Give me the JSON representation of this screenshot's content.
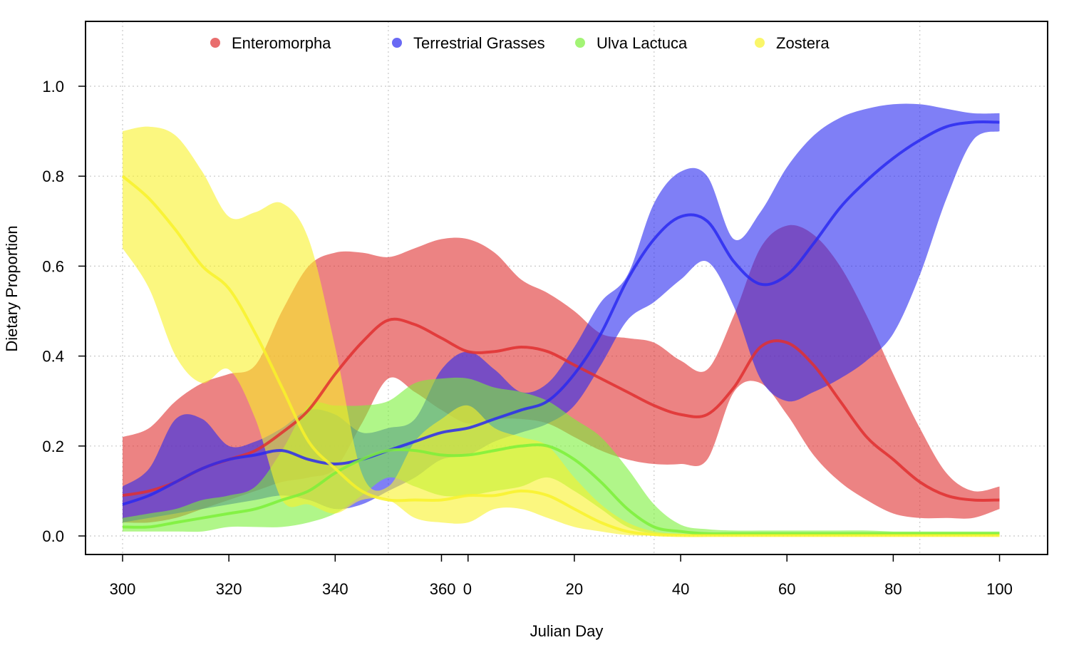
{
  "chart_data": {
    "type": "area",
    "xlabel": "Julian Day",
    "ylabel": "Dietary Proportion",
    "x_domain": [
      300,
      466
    ],
    "ylim": [
      -0.05,
      1.1
    ],
    "x_ticks": [
      {
        "pos": 300,
        "label": "300"
      },
      {
        "pos": 320,
        "label": "320"
      },
      {
        "pos": 340,
        "label": "340"
      },
      {
        "pos": 360,
        "label": "360"
      },
      {
        "pos": 365,
        "label": "0"
      },
      {
        "pos": 385,
        "label": "20"
      },
      {
        "pos": 405,
        "label": "40"
      },
      {
        "pos": 425,
        "label": "60"
      },
      {
        "pos": 445,
        "label": "80"
      },
      {
        "pos": 465,
        "label": "100"
      }
    ],
    "x_grid": [
      300,
      350,
      400,
      450
    ],
    "y_ticks": [
      {
        "pos": 0.0,
        "label": "0.0"
      },
      {
        "pos": 0.2,
        "label": "0.2"
      },
      {
        "pos": 0.4,
        "label": "0.4"
      },
      {
        "pos": 0.6,
        "label": "0.6"
      },
      {
        "pos": 0.8,
        "label": "0.8"
      },
      {
        "pos": 1.0,
        "label": "1.0"
      }
    ],
    "grid": true,
    "legend_position": "top",
    "series": [
      {
        "name": "Enteromorpha",
        "color": "#e03030",
        "x": [
          300,
          305,
          310,
          315,
          320,
          325,
          330,
          335,
          340,
          345,
          350,
          355,
          360,
          365,
          370,
          375,
          380,
          385,
          390,
          395,
          400,
          405,
          410,
          415,
          420,
          425,
          430,
          435,
          440,
          445,
          450,
          455,
          460,
          465
        ],
        "mean": [
          0.09,
          0.1,
          0.12,
          0.15,
          0.17,
          0.19,
          0.23,
          0.28,
          0.36,
          0.43,
          0.48,
          0.47,
          0.44,
          0.41,
          0.41,
          0.42,
          0.41,
          0.38,
          0.35,
          0.32,
          0.29,
          0.27,
          0.27,
          0.33,
          0.42,
          0.43,
          0.38,
          0.3,
          0.22,
          0.17,
          0.12,
          0.09,
          0.08,
          0.08
        ],
        "lower": [
          0.03,
          0.03,
          0.04,
          0.06,
          0.08,
          0.1,
          0.12,
          0.13,
          0.15,
          0.25,
          0.35,
          0.32,
          0.28,
          0.25,
          0.26,
          0.26,
          0.25,
          0.22,
          0.19,
          0.17,
          0.16,
          0.16,
          0.17,
          0.32,
          0.34,
          0.27,
          0.18,
          0.12,
          0.08,
          0.05,
          0.04,
          0.04,
          0.04,
          0.06
        ],
        "upper": [
          0.22,
          0.24,
          0.3,
          0.34,
          0.36,
          0.38,
          0.5,
          0.6,
          0.63,
          0.63,
          0.62,
          0.64,
          0.66,
          0.66,
          0.63,
          0.57,
          0.54,
          0.5,
          0.45,
          0.44,
          0.43,
          0.39,
          0.37,
          0.49,
          0.64,
          0.69,
          0.67,
          0.6,
          0.49,
          0.36,
          0.24,
          0.14,
          0.1,
          0.11
        ]
      },
      {
        "name": "Terrestrial Grasses",
        "color": "#2a2af0",
        "x": [
          300,
          305,
          310,
          315,
          320,
          325,
          330,
          335,
          340,
          345,
          350,
          355,
          360,
          365,
          370,
          375,
          380,
          385,
          390,
          395,
          400,
          405,
          410,
          415,
          420,
          425,
          430,
          435,
          440,
          445,
          450,
          455,
          460,
          465
        ],
        "mean": [
          0.07,
          0.09,
          0.12,
          0.15,
          0.17,
          0.18,
          0.19,
          0.17,
          0.16,
          0.17,
          0.19,
          0.21,
          0.23,
          0.24,
          0.26,
          0.28,
          0.3,
          0.36,
          0.45,
          0.57,
          0.66,
          0.71,
          0.7,
          0.61,
          0.56,
          0.58,
          0.65,
          0.73,
          0.79,
          0.84,
          0.88,
          0.91,
          0.92,
          0.92
        ],
        "lower": [
          0.03,
          0.04,
          0.05,
          0.06,
          0.07,
          0.08,
          0.09,
          0.08,
          0.06,
          0.07,
          0.1,
          0.13,
          0.17,
          0.18,
          0.21,
          0.23,
          0.25,
          0.29,
          0.38,
          0.48,
          0.52,
          0.57,
          0.61,
          0.51,
          0.35,
          0.3,
          0.32,
          0.35,
          0.39,
          0.45,
          0.58,
          0.75,
          0.88,
          0.9
        ],
        "upper": [
          0.11,
          0.15,
          0.26,
          0.26,
          0.2,
          0.21,
          0.24,
          0.28,
          0.27,
          0.23,
          0.24,
          0.26,
          0.37,
          0.41,
          0.37,
          0.32,
          0.34,
          0.42,
          0.52,
          0.58,
          0.74,
          0.81,
          0.8,
          0.66,
          0.72,
          0.82,
          0.89,
          0.93,
          0.95,
          0.96,
          0.96,
          0.95,
          0.94,
          0.94
        ]
      },
      {
        "name": "Ulva Lactuca",
        "color": "#7cf03a",
        "x": [
          300,
          305,
          310,
          315,
          320,
          325,
          330,
          335,
          340,
          345,
          350,
          355,
          360,
          365,
          370,
          375,
          380,
          385,
          390,
          395,
          400,
          405,
          410,
          415,
          420,
          425,
          430,
          435,
          440,
          445,
          450,
          455,
          460,
          465
        ],
        "mean": [
          0.02,
          0.02,
          0.03,
          0.04,
          0.05,
          0.06,
          0.08,
          0.1,
          0.14,
          0.17,
          0.19,
          0.19,
          0.18,
          0.18,
          0.19,
          0.2,
          0.2,
          0.17,
          0.12,
          0.06,
          0.02,
          0.01,
          0.005,
          0.005,
          0.005,
          0.005,
          0.005,
          0.005,
          0.005,
          0.005,
          0.005,
          0.005,
          0.005,
          0.005
        ],
        "lower": [
          0.01,
          0.01,
          0.01,
          0.01,
          0.02,
          0.02,
          0.02,
          0.03,
          0.05,
          0.09,
          0.13,
          0.11,
          0.09,
          0.09,
          0.1,
          0.11,
          0.13,
          0.1,
          0.06,
          0.02,
          0.005,
          0.002,
          0.002,
          0.002,
          0.002,
          0.002,
          0.002,
          0.002,
          0.002,
          0.002,
          0.002,
          0.002,
          0.002,
          0.002
        ],
        "upper": [
          0.04,
          0.05,
          0.06,
          0.08,
          0.09,
          0.11,
          0.19,
          0.29,
          0.29,
          0.29,
          0.3,
          0.34,
          0.35,
          0.35,
          0.33,
          0.32,
          0.3,
          0.26,
          0.22,
          0.15,
          0.07,
          0.025,
          0.015,
          0.012,
          0.012,
          0.012,
          0.012,
          0.012,
          0.012,
          0.01,
          0.01,
          0.01,
          0.01,
          0.01
        ]
      },
      {
        "name": "Zostera",
        "color": "#f8f22a",
        "x": [
          300,
          305,
          310,
          315,
          320,
          325,
          330,
          335,
          340,
          345,
          350,
          355,
          360,
          365,
          370,
          375,
          380,
          385,
          390,
          395,
          400,
          405,
          410,
          415,
          420,
          425,
          430,
          435,
          440,
          445,
          450,
          455,
          460,
          465
        ],
        "mean": [
          0.8,
          0.75,
          0.68,
          0.6,
          0.55,
          0.45,
          0.33,
          0.21,
          0.15,
          0.1,
          0.08,
          0.08,
          0.08,
          0.09,
          0.09,
          0.1,
          0.09,
          0.06,
          0.03,
          0.01,
          0.003,
          0.001,
          0.001,
          0.001,
          0.001,
          0.001,
          0.001,
          0.001,
          0.001,
          0.001,
          0.001,
          0.001,
          0.001,
          0.001
        ],
        "lower": [
          0.64,
          0.55,
          0.4,
          0.34,
          0.37,
          0.26,
          0.08,
          0.07,
          0.05,
          0.08,
          0.08,
          0.04,
          0.03,
          0.03,
          0.06,
          0.06,
          0.04,
          0.02,
          0.01,
          0.002,
          0.001,
          0.001,
          0.001,
          0.001,
          0.001,
          0.001,
          0.001,
          0.001,
          0.001,
          0.001,
          0.001,
          0.001,
          0.001,
          0.001
        ],
        "upper": [
          0.9,
          0.91,
          0.89,
          0.81,
          0.71,
          0.72,
          0.74,
          0.66,
          0.42,
          0.14,
          0.11,
          0.21,
          0.26,
          0.29,
          0.24,
          0.22,
          0.2,
          0.13,
          0.07,
          0.03,
          0.01,
          0.005,
          0.003,
          0.003,
          0.003,
          0.003,
          0.003,
          0.003,
          0.003,
          0.003,
          0.003,
          0.003,
          0.003,
          0.003
        ]
      }
    ]
  }
}
